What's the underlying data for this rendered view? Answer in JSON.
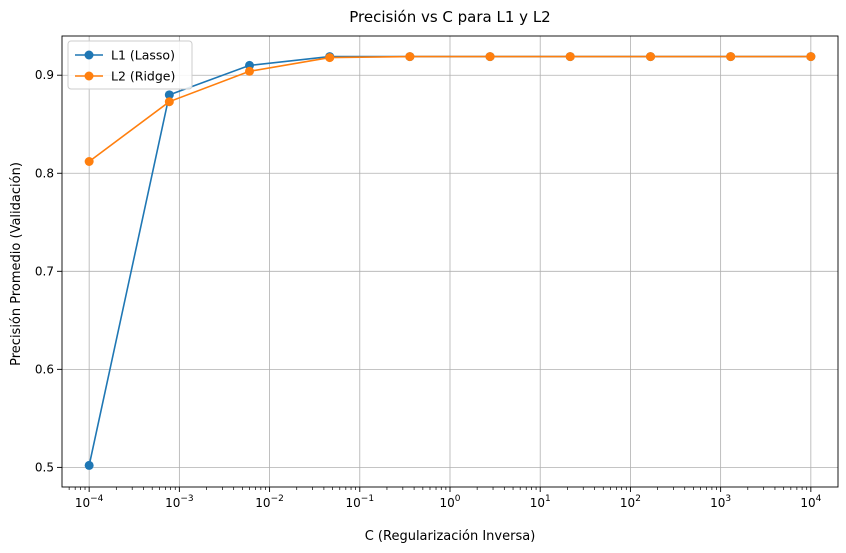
{
  "chart_data": {
    "type": "line",
    "title": "Precisión vs C para L1 y L2",
    "xlabel": "C (Regularización Inversa)",
    "ylabel": "Precisión Promedio (Validación)",
    "xscale": "log",
    "xlim": [
      5e-05,
      20000
    ],
    "ylim": [
      0.48,
      0.94
    ],
    "x": [
      0.0001,
      0.000774,
      0.00599,
      0.0464,
      0.359,
      2.78,
      21.5,
      167,
      1292,
      10000
    ],
    "xticks": [
      {
        "base": "10",
        "exp": "−4",
        "value": 0.0001
      },
      {
        "base": "10",
        "exp": "−3",
        "value": 0.001
      },
      {
        "base": "10",
        "exp": "−2",
        "value": 0.01
      },
      {
        "base": "10",
        "exp": "−1",
        "value": 0.1
      },
      {
        "base": "10",
        "exp": "0",
        "value": 1
      },
      {
        "base": "10",
        "exp": "1",
        "value": 10
      },
      {
        "base": "10",
        "exp": "2",
        "value": 100
      },
      {
        "base": "10",
        "exp": "3",
        "value": 1000
      },
      {
        "base": "10",
        "exp": "4",
        "value": 10000
      }
    ],
    "yticks": [
      "0.5",
      "0.6",
      "0.7",
      "0.8",
      "0.9"
    ],
    "grid": true,
    "legend": "upper-left",
    "series": [
      {
        "name": "L1 (Lasso)",
        "color": "#1f77b4",
        "values": [
          0.502,
          0.88,
          0.91,
          0.919,
          0.919,
          0.919,
          0.919,
          0.919,
          0.919,
          0.919
        ]
      },
      {
        "name": "L2 (Ridge)",
        "color": "#ff7f0e",
        "values": [
          0.812,
          0.873,
          0.904,
          0.918,
          0.919,
          0.919,
          0.919,
          0.919,
          0.919,
          0.919
        ]
      }
    ]
  }
}
